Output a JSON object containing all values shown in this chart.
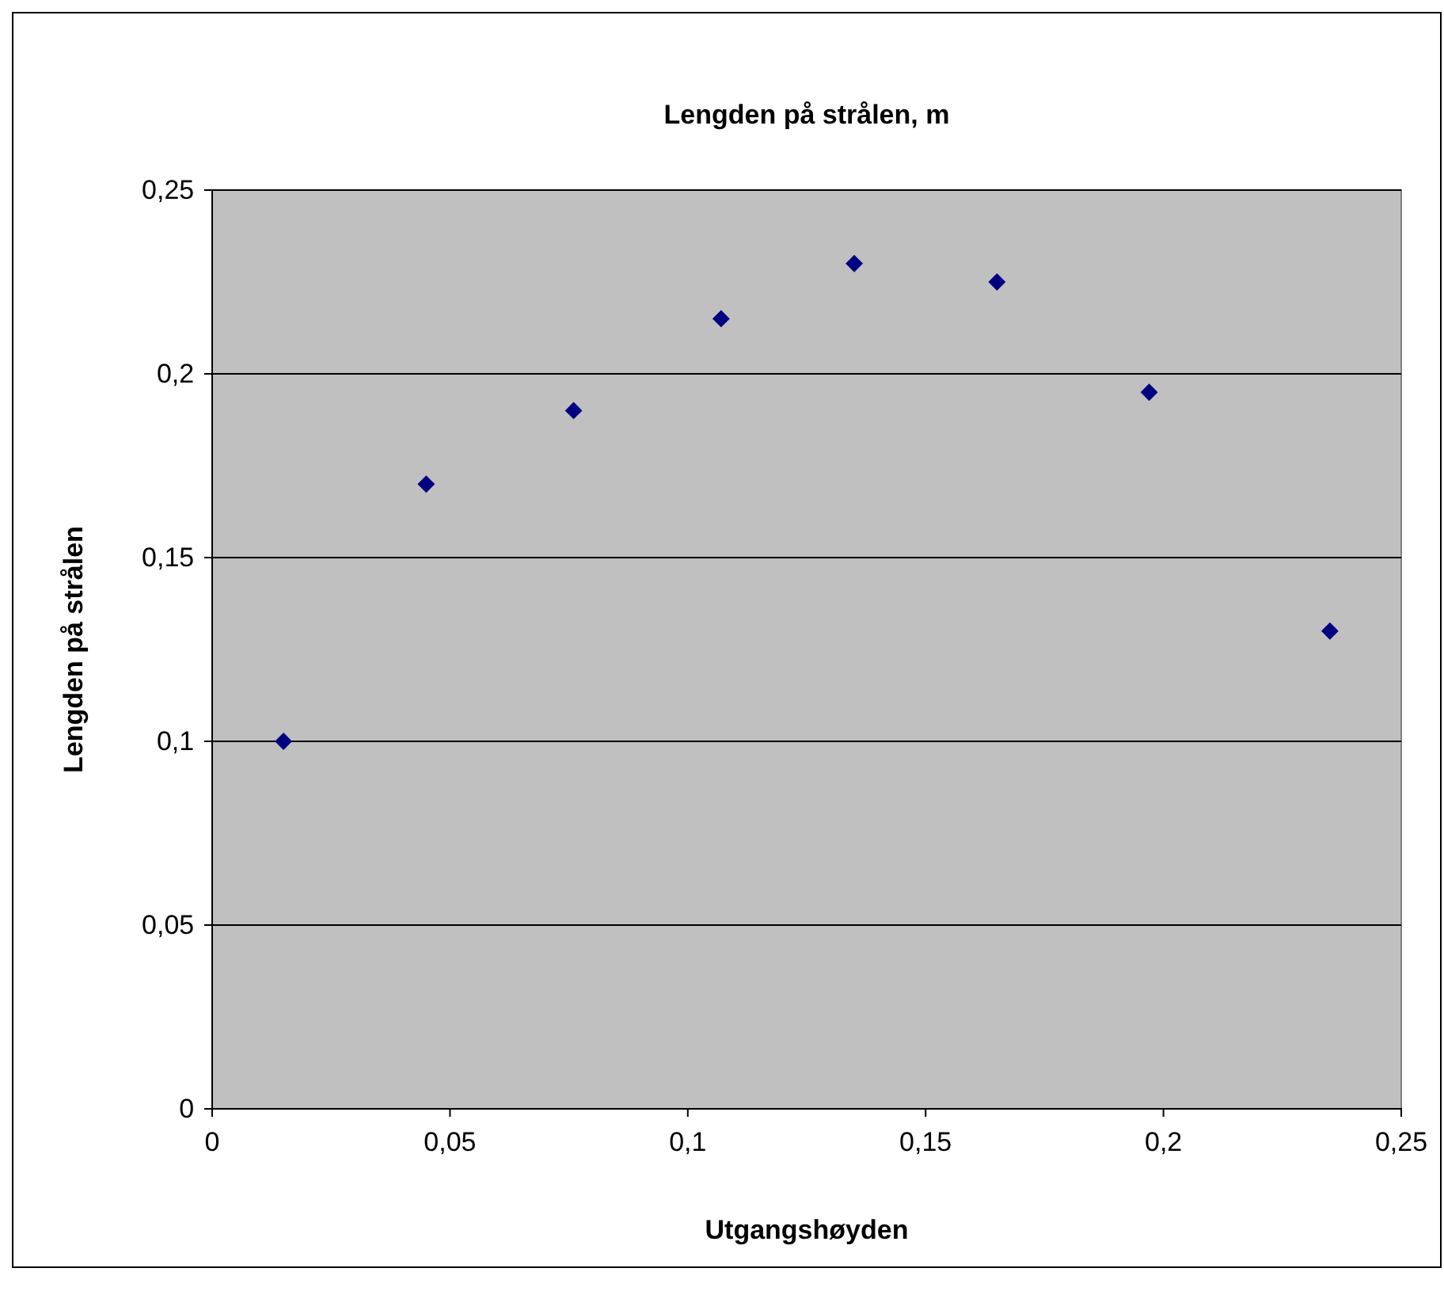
{
  "chart_data": {
    "type": "scatter",
    "title": "Lengden på strålen, m",
    "xlabel": "Utgangshøyden",
    "ylabel": "Lengden på strålen",
    "x": [
      0.015,
      0.045,
      0.076,
      0.107,
      0.135,
      0.165,
      0.197,
      0.235
    ],
    "series": [
      {
        "color": "#000080",
        "values": [
          0.1,
          0.17,
          0.19,
          0.215,
          0.23,
          0.225,
          0.195,
          0.13
        ]
      }
    ],
    "xlim": [
      0,
      0.25
    ],
    "ylim": [
      0,
      0.25
    ],
    "xticks": [
      0,
      {
        "value": 0.05,
        "label": "0,05"
      },
      {
        "value": 0.1,
        "label": "0,1"
      },
      {
        "value": 0.15,
        "label": "0,15"
      },
      {
        "value": 0.2,
        "label": "0,2"
      },
      {
        "value": 0.25,
        "label": "0,25"
      }
    ],
    "yticks": [
      0,
      {
        "value": 0.05,
        "label": "0,05"
      },
      {
        "value": 0.1,
        "label": "0,1"
      },
      {
        "value": 0.15,
        "label": "0,15"
      },
      {
        "value": 0.2,
        "label": "0,2"
      },
      {
        "value": 0.25,
        "label": "0,25"
      }
    ],
    "grid": "y",
    "marker": "diamond"
  }
}
